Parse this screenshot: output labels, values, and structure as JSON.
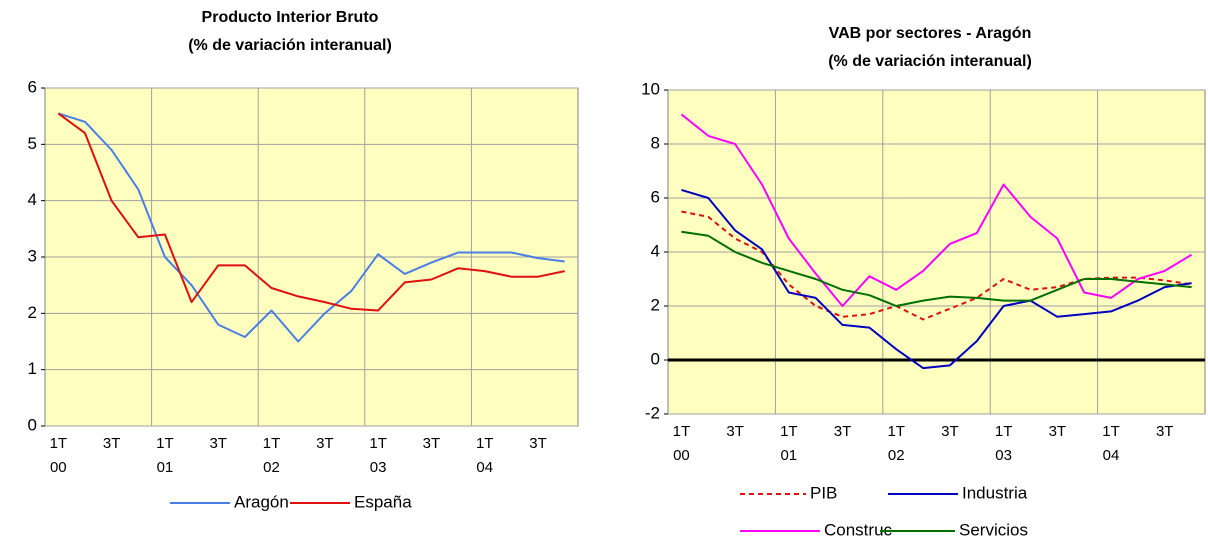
{
  "chart_data": [
    {
      "type": "line",
      "title": [
        "Producto Interior Bruto",
        "(% de variación interanual)"
      ],
      "categories": [
        "1T\n00",
        null,
        "3T",
        null,
        "1T\n01",
        null,
        "3T",
        null,
        "1T\n02",
        null,
        "3T",
        null,
        "1T\n03",
        null,
        "3T",
        null,
        "1T\n04",
        null,
        "3T",
        null
      ],
      "series": [
        {
          "name": "Aragón",
          "color": "#4a7fe6",
          "values": [
            5.55,
            5.4,
            4.9,
            4.2,
            3.0,
            2.5,
            1.8,
            1.58,
            2.05,
            1.5,
            2.0,
            2.4,
            3.05,
            2.7,
            2.9,
            3.08,
            3.08,
            3.08,
            2.98,
            2.92
          ]
        },
        {
          "name": "España",
          "color": "#e01010",
          "values": [
            5.55,
            5.2,
            4.0,
            3.35,
            3.4,
            2.2,
            2.85,
            2.85,
            2.45,
            2.3,
            2.2,
            2.08,
            2.05,
            2.55,
            2.6,
            2.8,
            2.75,
            2.65,
            2.65,
            2.75
          ]
        }
      ],
      "ylim": [
        0,
        6
      ],
      "yticks": [
        0,
        1,
        2,
        3,
        4,
        5,
        6
      ],
      "grid": true,
      "legend": "bottom"
    },
    {
      "type": "line",
      "title": [
        "VAB por sectores - Aragón",
        "(% de variación interanual)"
      ],
      "categories": [
        "1T\n00",
        null,
        "3T",
        null,
        "1T\n01",
        null,
        "3T",
        null,
        "1T\n02",
        null,
        "3T",
        null,
        "1T\n03",
        null,
        "3T",
        null,
        "1T\n04",
        null,
        "3T",
        null
      ],
      "series": [
        {
          "name": "PIB",
          "color": "#e01010",
          "dashed": true,
          "values": [
            5.5,
            5.3,
            4.5,
            4.0,
            2.8,
            2.0,
            1.6,
            1.7,
            2.0,
            1.5,
            1.9,
            2.3,
            3.0,
            2.6,
            2.7,
            3.0,
            3.05,
            3.05,
            2.95,
            2.8
          ]
        },
        {
          "name": "Industria",
          "color": "#0000c0",
          "values": [
            6.3,
            6.0,
            4.8,
            4.1,
            2.5,
            2.3,
            1.3,
            1.2,
            0.4,
            -0.3,
            -0.2,
            0.7,
            2.0,
            2.2,
            1.6,
            1.7,
            1.8,
            2.2,
            2.7,
            2.85
          ]
        },
        {
          "name": "Construc",
          "color": "#ff00ff",
          "values": [
            9.1,
            8.3,
            8.0,
            6.5,
            4.5,
            3.2,
            2.0,
            3.1,
            2.6,
            3.3,
            4.3,
            4.7,
            6.5,
            5.3,
            4.5,
            2.5,
            2.3,
            3.0,
            3.3,
            3.9
          ]
        },
        {
          "name": "Servicios",
          "color": "#007000",
          "values": [
            4.75,
            4.6,
            4.0,
            3.6,
            3.3,
            3.0,
            2.6,
            2.4,
            2.0,
            2.2,
            2.35,
            2.3,
            2.2,
            2.2,
            2.6,
            3.0,
            3.0,
            2.9,
            2.8,
            2.7
          ]
        }
      ],
      "ylim": [
        -2,
        10
      ],
      "yticks": [
        -2,
        0,
        2,
        4,
        6,
        8,
        10
      ],
      "grid": true,
      "zero_line": true,
      "legend": "bottom"
    }
  ]
}
